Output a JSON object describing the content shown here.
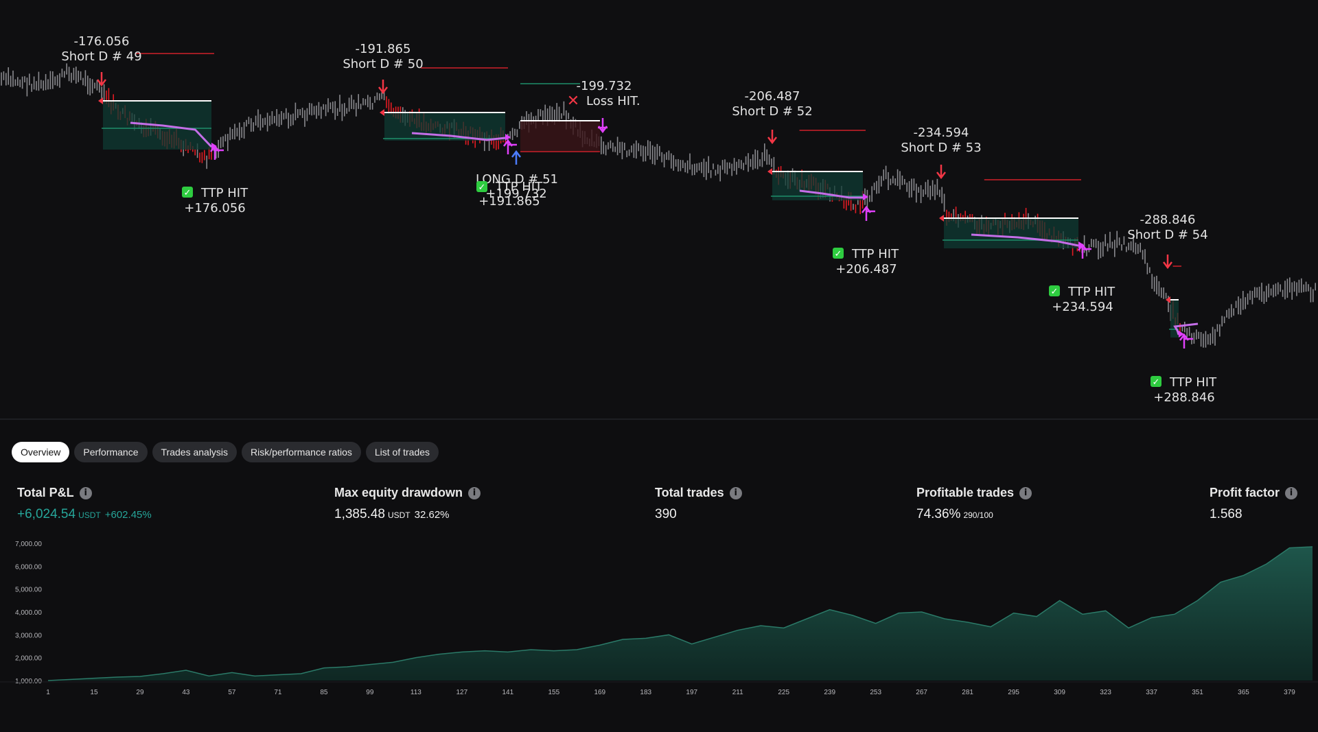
{
  "tabs": [
    {
      "label": "Overview",
      "active": true
    },
    {
      "label": "Performance",
      "active": false
    },
    {
      "label": "Trades analysis",
      "active": false
    },
    {
      "label": "Risk/performance ratios",
      "active": false
    },
    {
      "label": "List of trades",
      "active": false
    }
  ],
  "metrics": {
    "total_pnl": {
      "label": "Total P&L",
      "value": "+6,024.54",
      "unit": "USDT",
      "pct": "+602.45%"
    },
    "max_drawdown": {
      "label": "Max equity drawdown",
      "value": "1,385.48",
      "unit": "USDT",
      "pct": "32.62%"
    },
    "total_trades": {
      "label": "Total trades",
      "value": "390"
    },
    "profitable_trades": {
      "label": "Profitable trades",
      "value": "74.36%",
      "ratio": "290/100"
    },
    "profit_factor": {
      "label": "Profit factor",
      "value": "1.568"
    }
  },
  "info_icon": "i",
  "colors": {
    "accent_green": "#26a69a",
    "short_arrow": "#f23645",
    "ttp_arrow": "#e040fb",
    "bg": "#0e0e10"
  },
  "trades": [
    {
      "entry_price": "-176.056",
      "entry_label": "Short D # 49",
      "exit_label": "TTP HIT",
      "exit_value": "+176.056"
    },
    {
      "entry_price": "-191.865",
      "entry_label": "Short D # 50",
      "exit_label": "TTP HIT",
      "exit_value": "+191.865"
    },
    {
      "entry_price": "LONG D # 51",
      "exit_label": "Loss HIT.",
      "exit_value": "-199.732",
      "overlap_label": "TTP HIT",
      "overlap_value": "+199.732"
    },
    {
      "entry_price": "-206.487",
      "entry_label": "Short D # 52",
      "exit_label": "TTP HIT",
      "exit_value": "+206.487"
    },
    {
      "entry_price": "-234.594",
      "entry_label": "Short D # 53",
      "exit_label": "TTP HIT",
      "exit_value": "+234.594"
    },
    {
      "entry_price": "-288.846",
      "entry_label": "Short D # 54",
      "exit_label": "TTP HIT",
      "exit_value": "+288.846"
    }
  ],
  "chart_data": {
    "type": "area",
    "title": "",
    "y_ticks": [
      "7,000.00",
      "6,000.00",
      "5,000.00",
      "4,000.00",
      "3,000.00",
      "2,000.00",
      "1,000.00"
    ],
    "ylim": [
      1000,
      7000
    ],
    "x_ticks": [
      "1",
      "15",
      "29",
      "43",
      "57",
      "71",
      "85",
      "99",
      "113",
      "127",
      "141",
      "155",
      "169",
      "183",
      "197",
      "211",
      "225",
      "239",
      "253",
      "267",
      "281",
      "295",
      "309",
      "323",
      "337",
      "351",
      "365",
      "379"
    ],
    "x": [
      1,
      8,
      15,
      22,
      29,
      36,
      43,
      50,
      57,
      64,
      71,
      78,
      85,
      92,
      99,
      106,
      113,
      120,
      127,
      134,
      141,
      148,
      155,
      162,
      169,
      176,
      183,
      190,
      197,
      204,
      211,
      218,
      225,
      232,
      239,
      246,
      253,
      260,
      267,
      274,
      281,
      288,
      295,
      302,
      309,
      316,
      323,
      330,
      337,
      344,
      351,
      358,
      365,
      372,
      379,
      386
    ],
    "equity": [
      1000,
      1050,
      1100,
      1150,
      1180,
      1300,
      1450,
      1200,
      1350,
      1200,
      1250,
      1300,
      1550,
      1600,
      1700,
      1800,
      2000,
      2150,
      2250,
      2300,
      2250,
      2350,
      2300,
      2350,
      2550,
      2800,
      2850,
      3000,
      2600,
      2900,
      3200,
      3400,
      3300,
      3700,
      4100,
      3850,
      3500,
      3950,
      4000,
      3700,
      3550,
      3350,
      3950,
      3800,
      4500,
      3900,
      4050,
      3300,
      3750,
      3900,
      4500,
      5300,
      5600,
      6100,
      6800,
      6850
    ]
  }
}
